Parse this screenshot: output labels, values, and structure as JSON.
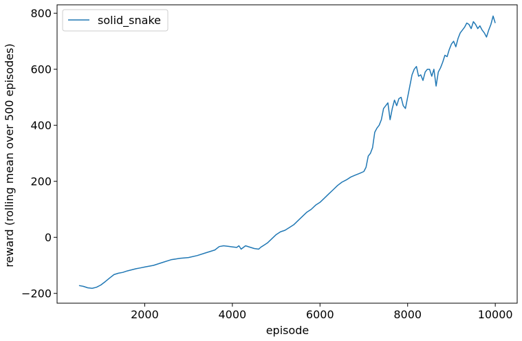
{
  "chart_data": {
    "type": "line",
    "xlabel": "episode",
    "ylabel": "reward (rolling mean over 500 episodes)",
    "xlim": [
      0,
      10500
    ],
    "ylim": [
      -235,
      830
    ],
    "xticks": [
      2000,
      4000,
      6000,
      8000,
      10000
    ],
    "yticks": [
      -200,
      0,
      200,
      400,
      600,
      800
    ],
    "xtick_labels": [
      "2000",
      "4000",
      "6000",
      "8000",
      "10000"
    ],
    "ytick_labels": [
      "−200",
      "0",
      "200",
      "400",
      "600",
      "800"
    ],
    "grid": false,
    "legend_position": "top-left",
    "series": [
      {
        "name": "solid_snake",
        "color": "#1f77b4",
        "x": [
          500,
          600,
          700,
          800,
          900,
          1000,
          1100,
          1200,
          1300,
          1400,
          1500,
          1600,
          1700,
          1800,
          1900,
          2000,
          2200,
          2400,
          2600,
          2800,
          3000,
          3200,
          3400,
          3600,
          3700,
          3800,
          3900,
          4000,
          4100,
          4150,
          4200,
          4300,
          4400,
          4500,
          4600,
          4650,
          4700,
          4800,
          4900,
          5000,
          5100,
          5200,
          5300,
          5400,
          5500,
          5600,
          5700,
          5800,
          5900,
          6000,
          6100,
          6200,
          6300,
          6400,
          6500,
          6600,
          6700,
          6800,
          6900,
          7000,
          7050,
          7100,
          7150,
          7200,
          7250,
          7300,
          7350,
          7400,
          7450,
          7500,
          7550,
          7600,
          7650,
          7700,
          7750,
          7800,
          7850,
          7900,
          7950,
          8000,
          8050,
          8100,
          8150,
          8200,
          8250,
          8300,
          8350,
          8400,
          8450,
          8500,
          8550,
          8600,
          8650,
          8700,
          8750,
          8800,
          8850,
          8900,
          8950,
          9000,
          9050,
          9100,
          9150,
          9200,
          9250,
          9300,
          9350,
          9400,
          9450,
          9500,
          9550,
          9600,
          9650,
          9700,
          9750,
          9800,
          9850,
          9900,
          9950,
          10000
        ],
        "values": [
          -172,
          -175,
          -180,
          -182,
          -178,
          -170,
          -158,
          -145,
          -133,
          -128,
          -125,
          -120,
          -116,
          -112,
          -109,
          -106,
          -100,
          -90,
          -80,
          -75,
          -72,
          -65,
          -55,
          -45,
          -33,
          -30,
          -32,
          -34,
          -36,
          -30,
          -42,
          -30,
          -35,
          -40,
          -42,
          -35,
          -30,
          -20,
          -5,
          10,
          20,
          25,
          35,
          45,
          60,
          75,
          90,
          100,
          115,
          125,
          140,
          155,
          170,
          185,
          197,
          205,
          215,
          222,
          228,
          235,
          250,
          290,
          300,
          320,
          375,
          390,
          400,
          420,
          460,
          470,
          480,
          420,
          460,
          490,
          470,
          495,
          500,
          470,
          460,
          500,
          540,
          580,
          600,
          610,
          575,
          580,
          560,
          590,
          600,
          600,
          575,
          600,
          540,
          590,
          605,
          625,
          650,
          645,
          670,
          690,
          700,
          680,
          710,
          730,
          740,
          750,
          765,
          760,
          745,
          770,
          760,
          745,
          755,
          740,
          730,
          715,
          740,
          760,
          790,
          765
        ]
      }
    ]
  }
}
